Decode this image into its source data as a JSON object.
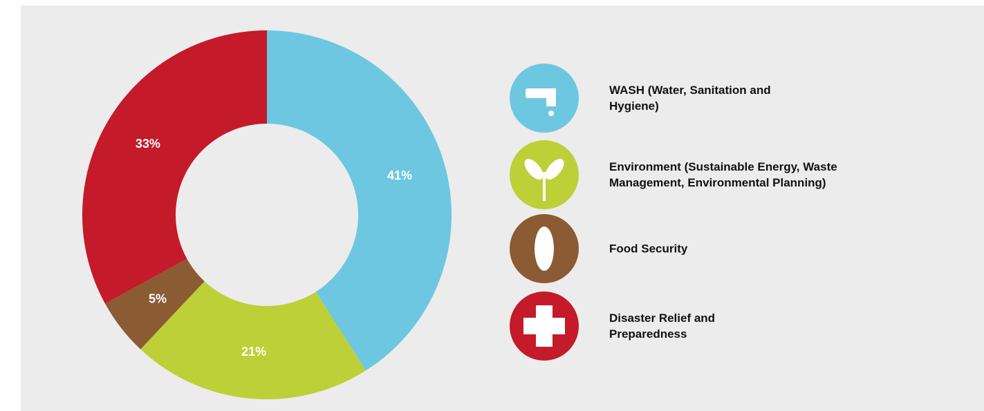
{
  "chart_data": {
    "type": "donut",
    "series": [
      {
        "name": "WASH (Water, Sanitation and Hygiene)",
        "color": "#6dc7e0",
        "values": [
          41
        ],
        "value_labels": [
          "41%"
        ]
      },
      {
        "name": "Environment (Sustainable Energy, Waste Management, Environmental Planning)",
        "color": "#bdd037",
        "values": [
          21
        ],
        "value_labels": [
          "21%"
        ]
      },
      {
        "name": "Food Security",
        "color": "#8b5b34",
        "values": [
          5
        ],
        "value_labels": [
          "5%"
        ]
      },
      {
        "name": "Disaster Relief and Preparedness",
        "color": "#c41a2a",
        "values": [
          33
        ],
        "value_labels": [
          "33%"
        ]
      }
    ],
    "legend": "right"
  }
}
